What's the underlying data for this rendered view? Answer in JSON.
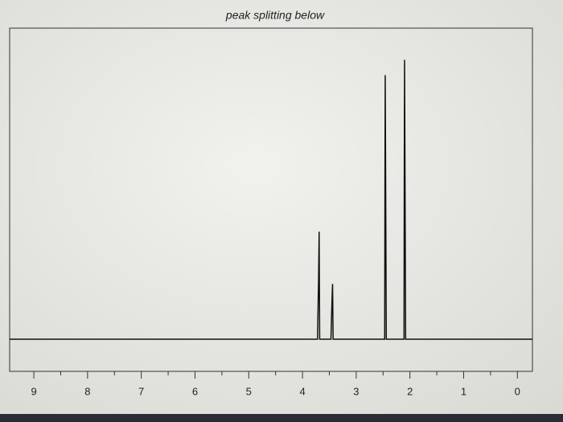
{
  "chart_data": {
    "type": "line",
    "title": "peak splitting below",
    "x": [
      9.45,
      4.2,
      3.72,
      3.7,
      3.69,
      3.68,
      3.66,
      3.47,
      3.45,
      3.44,
      3.43,
      3.4,
      2.5,
      2.47,
      2.465,
      2.46,
      2.44,
      2.14,
      2.11,
      2.105,
      2.1,
      2.08,
      -0.28
    ],
    "series": [
      {
        "color": "#111111",
        "values": [
          0,
          0,
          0,
          20,
          35,
          0,
          0,
          0,
          13,
          18,
          0,
          0,
          0,
          0,
          49,
          86,
          0,
          0,
          0,
          57,
          91,
          0,
          0
        ]
      }
    ],
    "xlim": [
      9.45,
      -0.28
    ],
    "xticks": [
      9,
      8,
      7,
      6,
      5,
      4,
      3,
      2,
      1,
      0
    ],
    "xminorticks": [
      8.5,
      7.5,
      6.5,
      5.5,
      4.5,
      3.5,
      2.5,
      1.5,
      0.5
    ],
    "ylim": [
      0,
      100
    ]
  }
}
